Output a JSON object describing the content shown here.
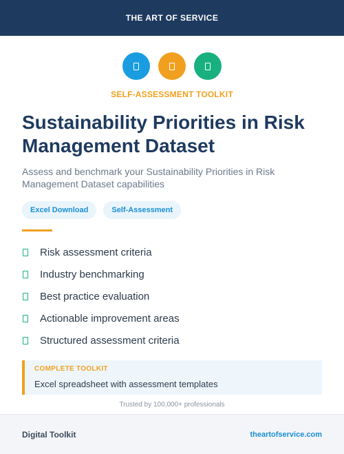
{
  "header": {
    "brand": "THE ART OF SERVICE"
  },
  "icons": [
    {
      "name": "document-icon",
      "color": "#1a9de0"
    },
    {
      "name": "document-icon",
      "color": "#f0a01e"
    },
    {
      "name": "document-icon",
      "color": "#17b07e"
    }
  ],
  "kicker": "SELF-ASSESSMENT TOOLKIT",
  "title": "Sustainability Priorities in Risk Management Dataset",
  "subtitle": "Assess and benchmark your Sustainability Priorities in Risk Management Dataset capabilities",
  "badges": [
    "Excel Download",
    "Self-Assessment"
  ],
  "features": [
    "Risk assessment criteria",
    "Industry benchmarking",
    "Best practice evaluation",
    "Actionable improvement areas",
    "Structured assessment criteria"
  ],
  "callout": {
    "kicker": "COMPLETE TOOLKIT",
    "text": "Excel spreadsheet with assessment templates"
  },
  "trusted": "Trusted by 100,000+ professionals",
  "footer": {
    "left": "Digital Toolkit",
    "right": "theartofservice.com"
  },
  "colors": {
    "navy": "#1e3a5f",
    "orange": "#f0a01e",
    "blue": "#1a9de0",
    "green": "#17b07e"
  }
}
